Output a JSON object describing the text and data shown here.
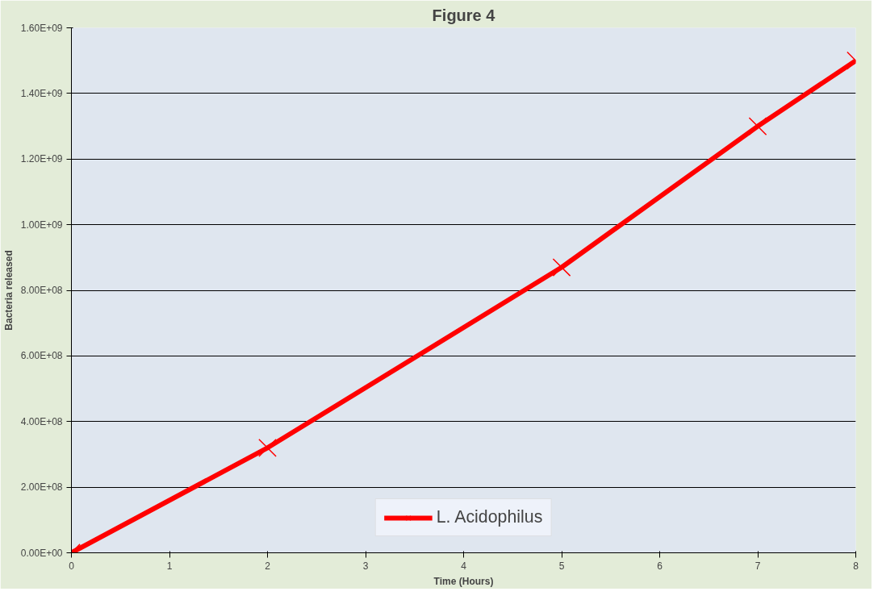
{
  "chart_data": {
    "type": "line",
    "title": "Figure 4",
    "xlabel": "Time (Hours)",
    "ylabel": "Bacteria released",
    "x": [
      0,
      2,
      5,
      7,
      8
    ],
    "series": [
      {
        "name": "L. Acidophilus",
        "color": "#ff0000",
        "values": [
          0,
          320000000,
          870000000,
          1300000000,
          1500000000
        ]
      }
    ],
    "xlim": [
      0,
      8
    ],
    "xticks": [
      0,
      1,
      2,
      3,
      4,
      5,
      6,
      7,
      8
    ],
    "ylim": [
      0,
      1600000000
    ],
    "yticks": [
      {
        "value": 0,
        "label": "0.00E+00"
      },
      {
        "value": 200000000,
        "label": "2.00E+08"
      },
      {
        "value": 400000000,
        "label": "4.00E+08"
      },
      {
        "value": 600000000,
        "label": "6.00E+08"
      },
      {
        "value": 800000000,
        "label": "8.00E+08"
      },
      {
        "value": 1000000000,
        "label": "1.00E+09"
      },
      {
        "value": 1200000000,
        "label": "1.20E+09"
      },
      {
        "value": 1400000000,
        "label": "1.40E+09"
      },
      {
        "value": 1600000000,
        "label": "1.60E+09"
      }
    ],
    "grid": "y",
    "legend": "bottom",
    "marker": "cross",
    "line_style": "solid"
  }
}
